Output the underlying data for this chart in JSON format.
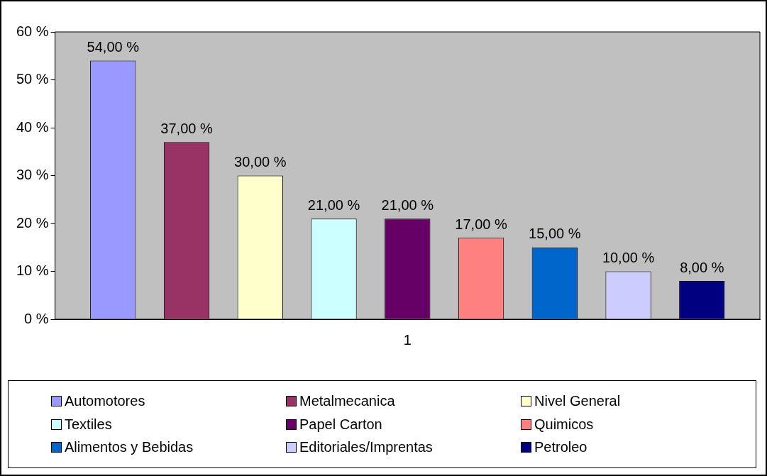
{
  "chart_data": {
    "type": "bar",
    "categories": [
      "1"
    ],
    "series": [
      {
        "name": "Automotores",
        "color": "#9999ff",
        "values": [
          54
        ],
        "value_labels": [
          "54,00 %"
        ]
      },
      {
        "name": "Metalmecanica",
        "color": "#993366",
        "values": [
          37
        ],
        "value_labels": [
          "37,00 %"
        ]
      },
      {
        "name": "Nivel General",
        "color": "#ffffcc",
        "values": [
          30
        ],
        "value_labels": [
          "30,00 %"
        ]
      },
      {
        "name": "Textiles",
        "color": "#ccffff",
        "values": [
          21
        ],
        "value_labels": [
          "21,00 %"
        ]
      },
      {
        "name": "Papel Carton",
        "color": "#660066",
        "values": [
          21
        ],
        "value_labels": [
          "21,00 %"
        ]
      },
      {
        "name": "Quimicos",
        "color": "#ff8080",
        "values": [
          17
        ],
        "value_labels": [
          "17,00 %"
        ]
      },
      {
        "name": "Alimentos y Bebidas",
        "color": "#0066cc",
        "values": [
          15
        ],
        "value_labels": [
          "15,00 %"
        ]
      },
      {
        "name": "Editoriales/Imprentas",
        "color": "#ccccff",
        "values": [
          10
        ],
        "value_labels": [
          "10,00 %"
        ]
      },
      {
        "name": "Petroleo",
        "color": "#000080",
        "values": [
          8
        ],
        "value_labels": [
          "8,00 %"
        ]
      }
    ],
    "ylim": [
      0,
      60
    ],
    "yticks": [
      {
        "value": 0,
        "label": "0 %"
      },
      {
        "value": 10,
        "label": "10 %"
      },
      {
        "value": 20,
        "label": "20 %"
      },
      {
        "value": 30,
        "label": "30 %"
      },
      {
        "value": 40,
        "label": "40 %"
      },
      {
        "value": 50,
        "label": "50 %"
      },
      {
        "value": 60,
        "label": "60 %"
      }
    ],
    "grid": false,
    "legend": "bottom"
  }
}
